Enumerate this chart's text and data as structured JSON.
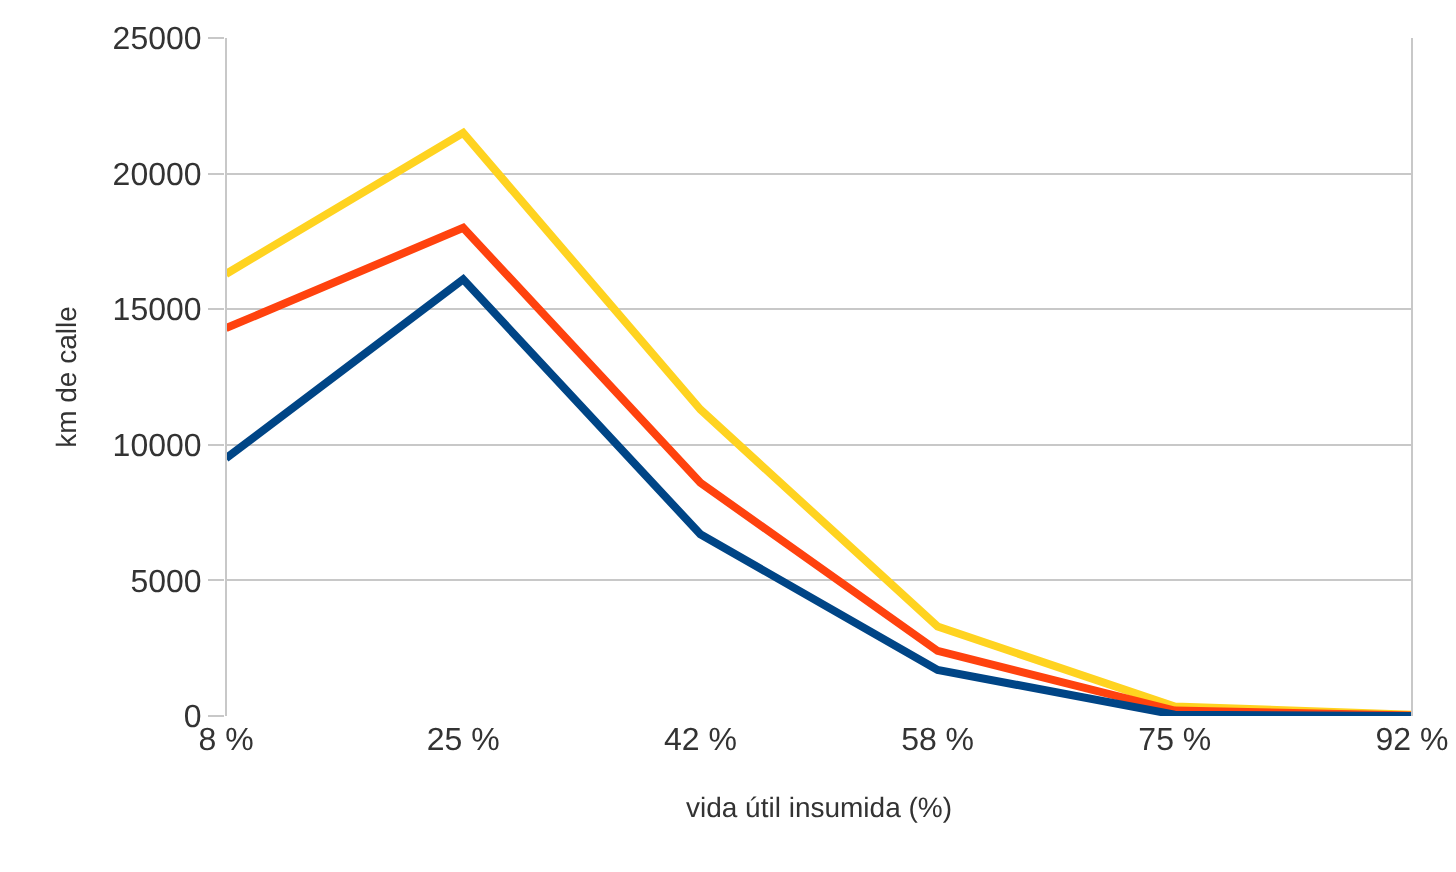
{
  "chart_data": {
    "type": "line",
    "xlabel": "vida útil insumida (%)",
    "ylabel": "km de calle",
    "categories": [
      "8 %",
      "25 %",
      "42 %",
      "58 %",
      "75 %",
      "92 %"
    ],
    "series": [
      {
        "color": "#ffd320",
        "values": [
          16300,
          21500,
          11300,
          3300,
          350,
          50
        ]
      },
      {
        "color": "#ff420e",
        "values": [
          14300,
          18000,
          8600,
          2400,
          200,
          20
        ]
      },
      {
        "color": "#004586",
        "values": [
          9500,
          16100,
          6700,
          1700,
          50,
          0
        ]
      }
    ],
    "ylim": [
      0,
      25000
    ],
    "yticks": [
      0,
      5000,
      10000,
      15000,
      20000,
      25000
    ],
    "grid": "y",
    "marker": "none",
    "line_style": "solid"
  }
}
